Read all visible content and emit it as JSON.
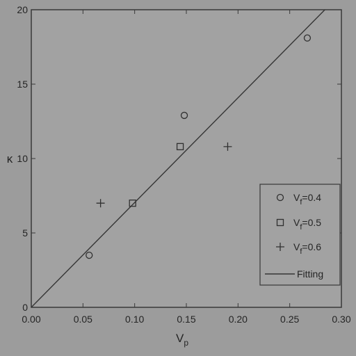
{
  "colors": {
    "background": "#9c9c9c",
    "plot_area": "#a2a2a2",
    "axis": "#383838",
    "marker": "#303030",
    "fit_line": "#353535",
    "text": "#242424"
  },
  "chart_data": {
    "type": "scatter",
    "xlabel": "V",
    "xlabel_sub": "p",
    "ylabel": "κ",
    "xlim": [
      0,
      0.3
    ],
    "ylim": [
      0,
      20
    ],
    "x_ticks": [
      "0.00",
      "0.05",
      "0.10",
      "0.15",
      "0.20",
      "0.25",
      "0.30"
    ],
    "x_tick_values": [
      0,
      0.05,
      0.1,
      0.15,
      0.2,
      0.25,
      0.3
    ],
    "y_ticks": [
      "0",
      "5",
      "10",
      "15",
      "20"
    ],
    "y_tick_values": [
      0,
      5,
      10,
      15,
      20
    ],
    "grid": false,
    "legend_position": "right",
    "series": [
      {
        "name": "V",
        "name_sub": "f",
        "name_suffix": "=0.4",
        "marker": "circle",
        "points": [
          [
            0.056,
            3.5
          ],
          [
            0.148,
            12.9
          ],
          [
            0.267,
            18.1
          ]
        ]
      },
      {
        "name": "V",
        "name_sub": "f",
        "name_suffix": "=0.5",
        "marker": "square",
        "points": [
          [
            0.098,
            7.0
          ],
          [
            0.144,
            10.8
          ]
        ]
      },
      {
        "name": "V",
        "name_sub": "f",
        "name_suffix": "=0.6",
        "marker": "plus",
        "points": [
          [
            0.067,
            7.0
          ],
          [
            0.19,
            10.8
          ]
        ]
      }
    ],
    "fit": {
      "name": "Fitting",
      "type": "line",
      "x": [
        0,
        0.284
      ],
      "y": [
        0,
        20
      ]
    }
  }
}
